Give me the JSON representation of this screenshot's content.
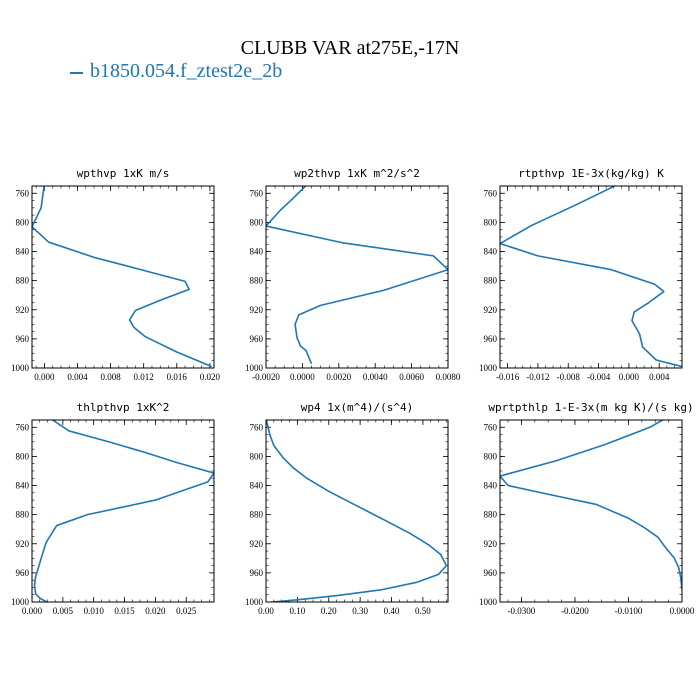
{
  "figure": {
    "title": "CLUBB VAR at275E,-17N",
    "legend": [
      {
        "label": "b1850.054.f_ztest2e_2b",
        "color": "#1f77b4"
      }
    ]
  },
  "chart_data": [
    {
      "type": "line",
      "title": "wpthvp   1xK m/s",
      "xlabel": "",
      "ylabel": "",
      "xlim": [
        -0.0015,
        0.0205
      ],
      "ylim": [
        1000,
        750
      ],
      "xticks": [
        "0.000",
        "0.004",
        "0.008",
        "0.012",
        "0.016",
        "0.020"
      ],
      "yticks": [
        "760",
        "800",
        "840",
        "880",
        "920",
        "960",
        "1000"
      ],
      "series": [
        {
          "name": "b1850.054.f_ztest2e_2b",
          "x": [
            0.0,
            -0.0004,
            -0.0015,
            0.0005,
            0.006,
            0.0117,
            0.017,
            0.0175,
            0.014,
            0.011,
            0.0103,
            0.0108,
            0.0122,
            0.016,
            0.0202
          ],
          "y": [
            747,
            780,
            806,
            827,
            848,
            865,
            881,
            892,
            907,
            921,
            934,
            944,
            957,
            978,
            998
          ]
        }
      ]
    },
    {
      "type": "line",
      "title": "wp2thvp   1xK m^2/s^2",
      "xlabel": "",
      "ylabel": "",
      "xlim": [
        -0.002,
        0.008
      ],
      "ylim": [
        1000,
        750
      ],
      "xticks": [
        "-0.0020",
        "0.0000",
        "0.0020",
        "0.0040",
        "0.0060",
        "0.0080"
      ],
      "yticks": [
        "760",
        "800",
        "840",
        "880",
        "920",
        "960",
        "1000"
      ],
      "series": [
        {
          "name": "b1850.054.f_ztest2e_2b",
          "x": [
            0.0003,
            -0.0006,
            -0.0012,
            -0.002,
            0.0022,
            0.0072,
            0.008,
            0.0045,
            0.001,
            -0.0002,
            -0.0004,
            -0.0003,
            -0.0001,
            0.0002,
            0.0004,
            0.0005
          ],
          "y": [
            747,
            769,
            783,
            805,
            828,
            846,
            865,
            893,
            914,
            927,
            940,
            958,
            970,
            976,
            988,
            994
          ]
        }
      ]
    },
    {
      "type": "line",
      "title": "rtpthvp   1E-3x(kg/kg) K",
      "xlabel": "",
      "ylabel": "",
      "xlim": [
        -0.017,
        0.007
      ],
      "ylim": [
        1000,
        750
      ],
      "xticks": [
        "-0.016",
        "-0.012",
        "-0.008",
        "-0.004",
        "0.000",
        "0.004"
      ],
      "yticks": [
        "760",
        "800",
        "840",
        "880",
        "920",
        "960",
        "1000"
      ],
      "series": [
        {
          "name": "b1850.054.f_ztest2e_2b",
          "x": [
            -0.0007,
            -0.007,
            -0.0128,
            -0.017,
            -0.012,
            -0.0023,
            0.0034,
            0.0046,
            0.0025,
            0.0007,
            0.0004,
            0.0014,
            0.0018,
            0.0036,
            0.007
          ],
          "y": [
            744,
            776,
            804,
            829,
            846,
            865,
            885,
            895,
            911,
            923,
            935,
            953,
            971,
            989,
            998
          ]
        }
      ]
    },
    {
      "type": "line",
      "title": "thlpthvp   1xK^2",
      "xlabel": "",
      "ylabel": "",
      "xlim": [
        0.0,
        0.0295
      ],
      "ylim": [
        1000,
        750
      ],
      "xticks": [
        "0.000",
        "0.005",
        "0.010",
        "0.015",
        "0.020",
        "0.025"
      ],
      "yticks": [
        "760",
        "800",
        "840",
        "880",
        "920",
        "960",
        "1000"
      ],
      "series": [
        {
          "name": "b1850.054.f_ztest2e_2b",
          "x": [
            0.003,
            0.006,
            0.0125,
            0.0185,
            0.0233,
            0.0295,
            0.0285,
            0.02,
            0.009,
            0.004,
            0.0023,
            0.0017,
            0.0011,
            0.0006,
            0.0004,
            0.0006,
            0.0013,
            0.0024
          ],
          "y": [
            748,
            765,
            780,
            795,
            808,
            823,
            835,
            860,
            880,
            895,
            918,
            934,
            951,
            965,
            977,
            989,
            995,
            1000
          ]
        }
      ]
    },
    {
      "type": "line",
      "title": "wp4   1x(m^4)/(s^4)",
      "xlabel": "",
      "ylabel": "",
      "xlim": [
        0.0,
        0.58
      ],
      "ylim": [
        1000,
        750
      ],
      "xticks": [
        "0.00",
        "0.10",
        "0.20",
        "0.30",
        "0.40",
        "0.50"
      ],
      "yticks": [
        "760",
        "800",
        "840",
        "880",
        "920",
        "960",
        "1000"
      ],
      "series": [
        {
          "name": "b1850.054.f_ztest2e_2b",
          "x": [
            0.0,
            0.012,
            0.025,
            0.055,
            0.085,
            0.13,
            0.2,
            0.29,
            0.38,
            0.46,
            0.52,
            0.557,
            0.575,
            0.55,
            0.48,
            0.37,
            0.23,
            0.1,
            0.02,
            0.0
          ],
          "y": [
            748,
            770,
            785,
            802,
            815,
            830,
            848,
            868,
            888,
            906,
            922,
            935,
            950,
            962,
            973,
            983,
            991,
            997,
            1000,
            1002
          ]
        }
      ]
    },
    {
      "type": "line",
      "title": "wprtpthlp   1-E-3x(m kg K)/(s kg)",
      "xlabel": "",
      "ylabel": "",
      "xlim": [
        -0.034,
        0.0
      ],
      "ylim": [
        1000,
        750
      ],
      "xticks": [
        "-0.0300",
        "-0.0200",
        "-0.0100",
        "0.0000"
      ],
      "yticks": [
        "760",
        "800",
        "840",
        "880",
        "920",
        "960",
        "1000"
      ],
      "series": [
        {
          "name": "b1850.054.f_ztest2e_2b",
          "x": [
            -0.0022,
            -0.006,
            -0.0145,
            -0.0235,
            -0.034,
            -0.0325,
            -0.025,
            -0.016,
            -0.01,
            -0.007,
            -0.0045,
            -0.003,
            -0.0015,
            -0.0006,
            -0.0002,
            0.0
          ],
          "y": [
            744,
            760,
            784,
            806,
            827,
            840,
            852,
            866,
            885,
            898,
            911,
            926,
            939,
            953,
            968,
            983
          ]
        }
      ]
    }
  ]
}
